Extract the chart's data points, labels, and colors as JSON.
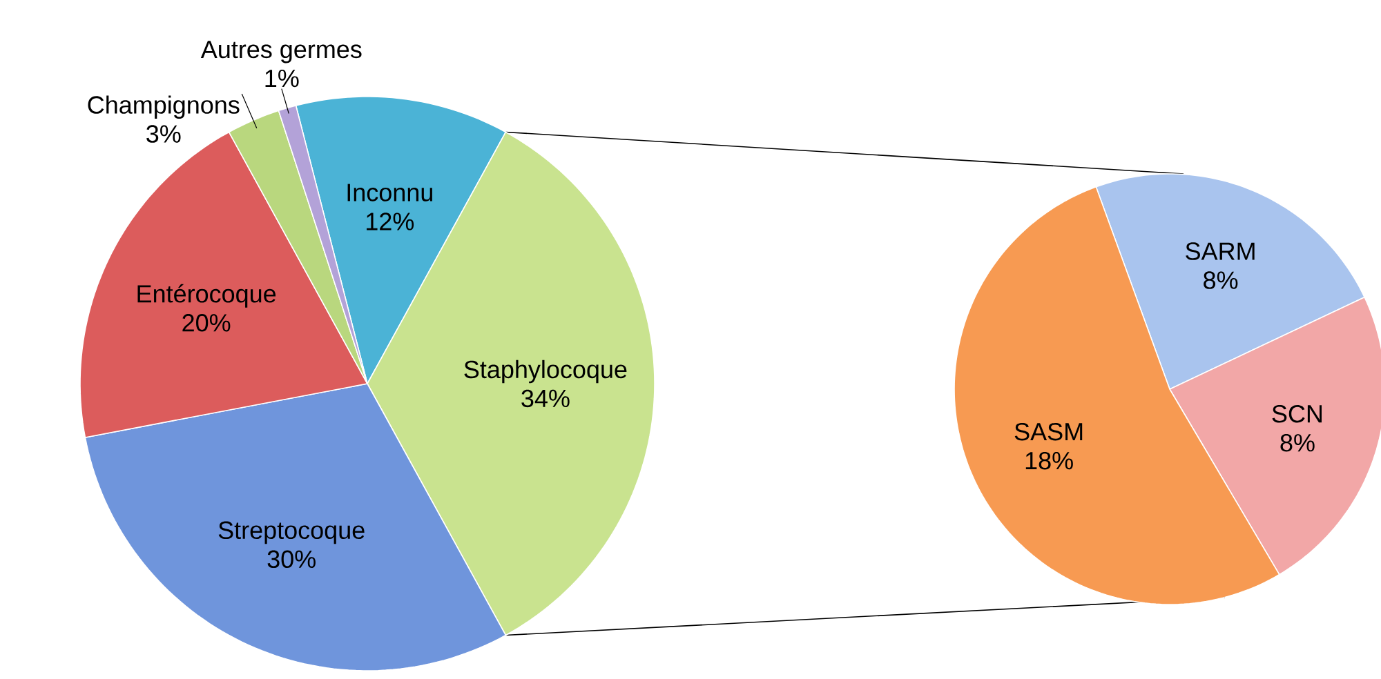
{
  "chart_data": [
    {
      "type": "pie",
      "categories": [
        "Inconnu",
        "Staphylocoque",
        "Streptocoque",
        "Entérocoque",
        "Champignons",
        "Autres germes"
      ],
      "values": [
        12,
        34,
        30,
        20,
        3,
        1
      ],
      "value_labels": [
        "12%",
        "34%",
        "30%",
        "20%",
        "3%",
        "1%"
      ],
      "colors": [
        "#4bb3d6",
        "#c9e38f",
        "#6f95dc",
        "#dc5c5c",
        "#b9d77e",
        "#b3a2d8"
      ]
    },
    {
      "type": "pie",
      "categories": [
        "SARM",
        "SCN",
        "SASM"
      ],
      "values": [
        8,
        8,
        18
      ],
      "value_labels": [
        "8%",
        "8%",
        "18%"
      ],
      "colors": [
        "#a9c4ee",
        "#f2a7a7",
        "#f79a52"
      ]
    }
  ]
}
